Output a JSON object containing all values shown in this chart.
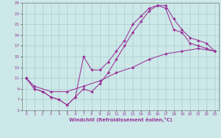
{
  "xlabel": "Windchill (Refroidissement éolien,°C)",
  "xlim": [
    -0.5,
    23.5
  ],
  "ylim": [
    5,
    25
  ],
  "xticks": [
    0,
    1,
    2,
    3,
    4,
    5,
    6,
    7,
    8,
    9,
    10,
    11,
    12,
    13,
    14,
    15,
    16,
    17,
    18,
    19,
    20,
    21,
    22,
    23
  ],
  "yticks": [
    5,
    7,
    9,
    11,
    13,
    15,
    17,
    19,
    21,
    23,
    25
  ],
  "bg_color": "#cce8e8",
  "grid_color": "#aacccc",
  "line_color": "#993399",
  "lines": [
    {
      "x": [
        0,
        1,
        3,
        5,
        7,
        9,
        11,
        13,
        15,
        17,
        19,
        21,
        23
      ],
      "y": [
        11,
        9.5,
        8.5,
        8.5,
        9.5,
        10.5,
        12,
        13,
        14.5,
        15.5,
        16,
        16.5,
        16
      ]
    },
    {
      "x": [
        0,
        1,
        2,
        3,
        4,
        5,
        6,
        7,
        8,
        9,
        10,
        11,
        12,
        13,
        14,
        15,
        16,
        17,
        18,
        19,
        20,
        21,
        22,
        23
      ],
      "y": [
        11,
        9,
        8.5,
        7.5,
        7,
        6,
        7.5,
        9,
        8.5,
        10,
        12,
        14.5,
        17,
        19.5,
        21.5,
        23.5,
        24.5,
        24.5,
        22,
        20,
        18.5,
        18,
        17.5,
        16
      ]
    },
    {
      "x": [
        0,
        1,
        2,
        3,
        4,
        5,
        6,
        7,
        8,
        9,
        10,
        11,
        12,
        13,
        14,
        15,
        16,
        17,
        18,
        19,
        20,
        21,
        22,
        23
      ],
      "y": [
        11,
        9,
        8.5,
        7.5,
        7,
        6,
        7.5,
        15,
        12.5,
        12.5,
        14,
        16,
        18,
        21,
        22.5,
        24,
        24.5,
        24,
        20,
        19.5,
        17.5,
        17,
        16.5,
        16
      ]
    }
  ]
}
